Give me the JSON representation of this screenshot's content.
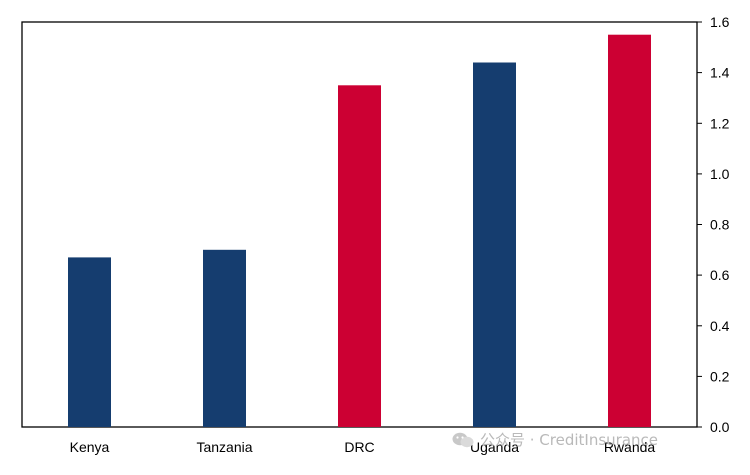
{
  "chart_data": {
    "type": "bar",
    "categories": [
      "Kenya",
      "Tanzania",
      "DRC",
      "Uganda",
      "Rwanda"
    ],
    "values": [
      0.67,
      0.7,
      1.35,
      1.44,
      1.55
    ],
    "bar_colors": [
      "#153D6F",
      "#153D6F",
      "#CC0033",
      "#153D6F",
      "#CC0033"
    ],
    "ylim": [
      0,
      1.6
    ],
    "yticks": [
      "0.0",
      "0.2",
      "0.4",
      "0.6",
      "0.8",
      "1.0",
      "1.2",
      "1.4",
      "1.6"
    ],
    "y_axis_side": "right",
    "grid": false,
    "title": "",
    "xlabel": "",
    "ylabel": ""
  },
  "watermark": {
    "text": "公众号 · CreditInsurance",
    "icon": "wechat-icon"
  }
}
